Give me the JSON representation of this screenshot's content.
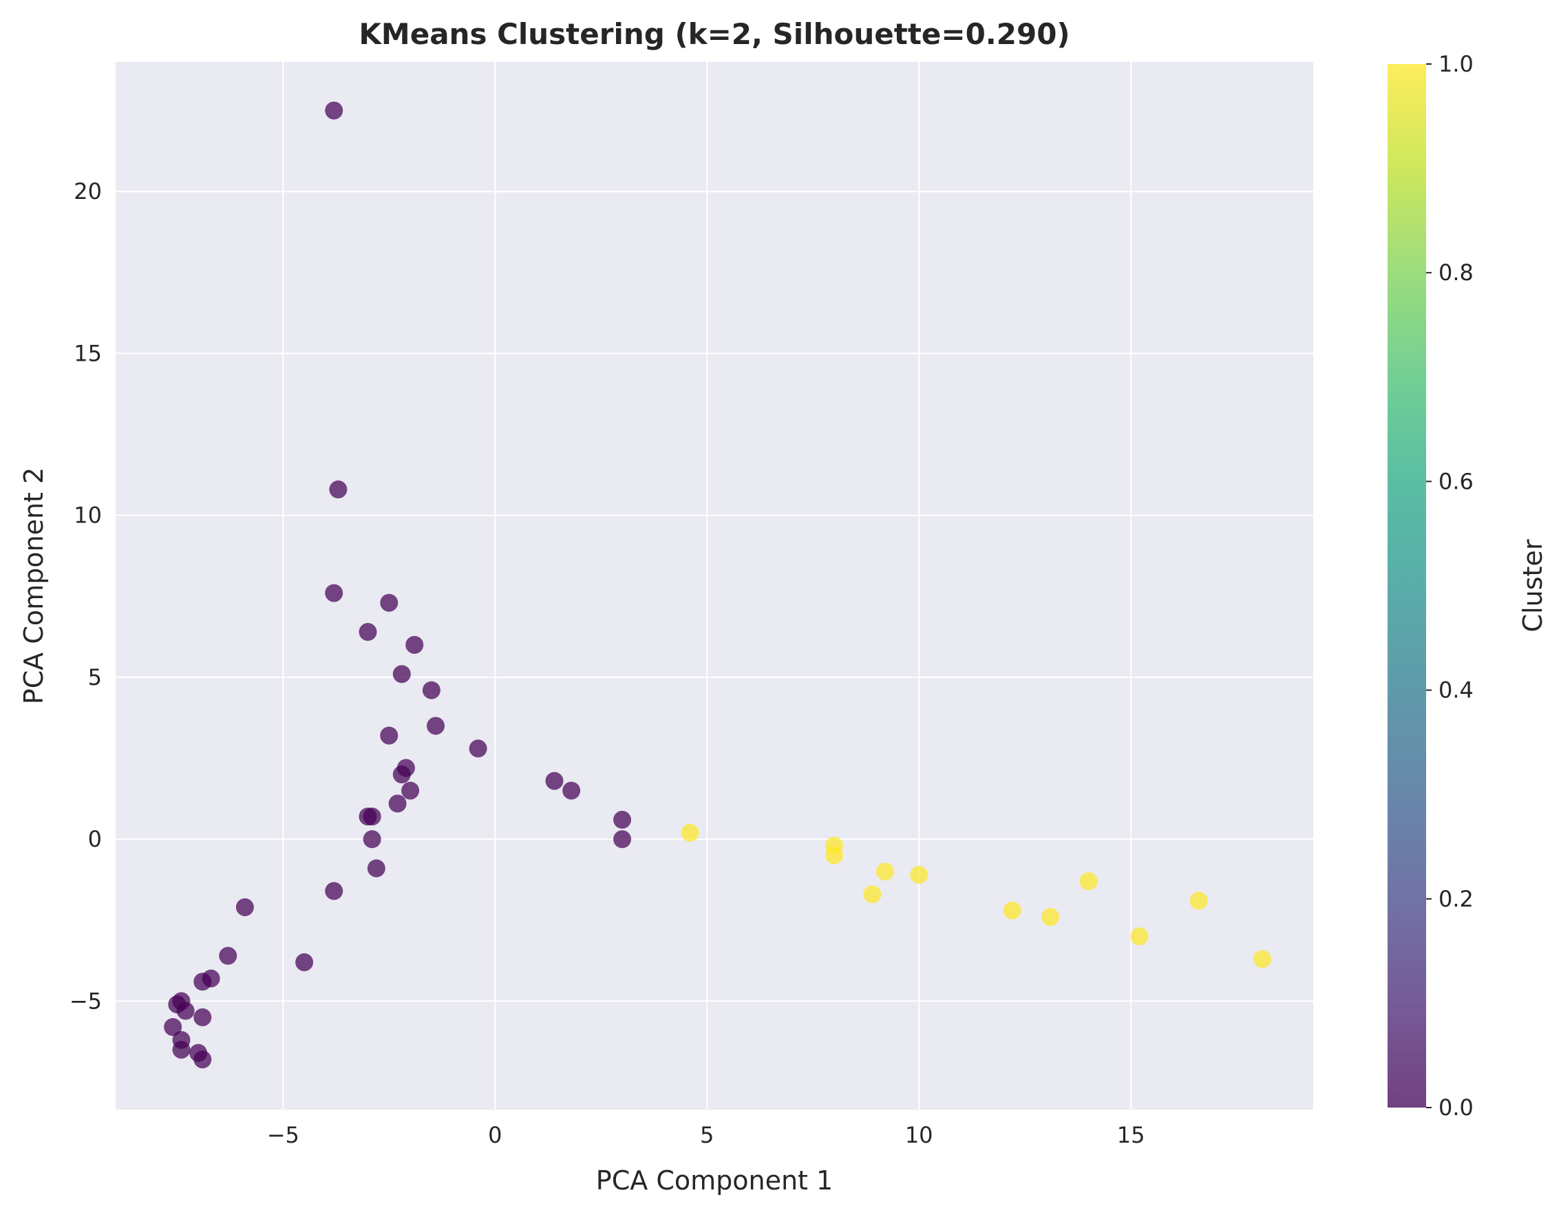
{
  "chart_data": {
    "type": "scatter",
    "title": "KMeans Clustering (k=2, Silhouette=0.290)",
    "xlabel": "PCA Component 1",
    "ylabel": "PCA Component 2",
    "xlim": [
      -8.95,
      19.3
    ],
    "ylim": [
      -8.35,
      24
    ],
    "xticks": [
      -5,
      0,
      5,
      10,
      15
    ],
    "yticks": [
      -5,
      0,
      5,
      10,
      15,
      20
    ],
    "grid": true,
    "colorbar": {
      "label": "Cluster",
      "min": 0.0,
      "max": 1.0,
      "ticks": [
        0.0,
        0.2,
        0.4,
        0.6,
        0.8,
        1.0
      ],
      "colormap": "viridis"
    },
    "colors": {
      "cluster_0": "#440154",
      "cluster_1": "#fde725",
      "background": "#eaeaf2",
      "grid": "#ffffff"
    },
    "series": [
      {
        "cluster": 0,
        "points": [
          [
            -3.8,
            22.5
          ],
          [
            -3.7,
            10.8
          ],
          [
            -3.8,
            7.6
          ],
          [
            -2.5,
            7.3
          ],
          [
            -3.0,
            6.4
          ],
          [
            -1.9,
            6.0
          ],
          [
            -2.2,
            5.1
          ],
          [
            -1.5,
            4.6
          ],
          [
            -1.4,
            3.5
          ],
          [
            -2.5,
            3.2
          ],
          [
            -0.4,
            2.8
          ],
          [
            -2.1,
            2.2
          ],
          [
            -2.2,
            2.0
          ],
          [
            -2.0,
            1.5
          ],
          [
            -2.3,
            1.1
          ],
          [
            1.4,
            1.8
          ],
          [
            1.8,
            1.5
          ],
          [
            3.0,
            0.6
          ],
          [
            3.0,
            0.0
          ],
          [
            -2.9,
            0.7
          ],
          [
            -3.0,
            0.7
          ],
          [
            -2.9,
            0.0
          ],
          [
            -2.8,
            -0.9
          ],
          [
            -3.8,
            -1.6
          ],
          [
            -5.9,
            -2.1
          ],
          [
            -6.3,
            -3.6
          ],
          [
            -4.5,
            -3.8
          ],
          [
            -6.7,
            -4.3
          ],
          [
            -6.9,
            -4.4
          ],
          [
            -7.5,
            -5.1
          ],
          [
            -7.4,
            -5.0
          ],
          [
            -7.3,
            -5.3
          ],
          [
            -6.9,
            -5.5
          ],
          [
            -7.6,
            -5.8
          ],
          [
            -7.4,
            -6.2
          ],
          [
            -7.4,
            -6.5
          ],
          [
            -7.0,
            -6.6
          ],
          [
            -6.9,
            -6.8
          ]
        ]
      },
      {
        "cluster": 1,
        "points": [
          [
            4.6,
            0.2
          ],
          [
            8.0,
            -0.2
          ],
          [
            8.0,
            -0.5
          ],
          [
            9.2,
            -1.0
          ],
          [
            10.0,
            -1.1
          ],
          [
            8.9,
            -1.7
          ],
          [
            12.2,
            -2.2
          ],
          [
            13.1,
            -2.4
          ],
          [
            14.0,
            -1.3
          ],
          [
            15.2,
            -3.0
          ],
          [
            16.6,
            -1.9
          ],
          [
            18.1,
            -3.7
          ]
        ]
      }
    ]
  }
}
